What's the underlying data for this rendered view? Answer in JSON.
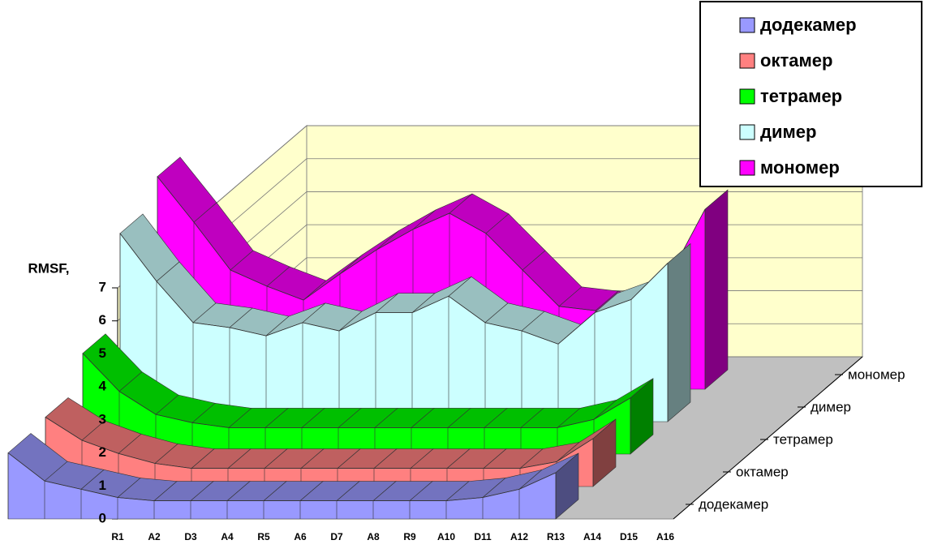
{
  "chart_data": {
    "type": "ribbon3d",
    "y_label": "RMSF,",
    "categories": [
      "R1",
      "A2",
      "D3",
      "A4",
      "R5",
      "A6",
      "D7",
      "A8",
      "R9",
      "A10",
      "D11",
      "A12",
      "R13",
      "A14",
      "D15",
      "A16"
    ],
    "series": [
      {
        "name": "додекамер",
        "color": "#9999ff",
        "values": [
          2.0,
          1.15,
          0.9,
          0.65,
          0.55,
          0.55,
          0.55,
          0.55,
          0.55,
          0.55,
          0.55,
          0.55,
          0.55,
          0.65,
          0.9,
          1.4
        ]
      },
      {
        "name": "октамер",
        "color": "#ff8080",
        "values": [
          2.1,
          1.4,
          1.0,
          0.7,
          0.55,
          0.55,
          0.55,
          0.55,
          0.55,
          0.55,
          0.55,
          0.55,
          0.55,
          0.55,
          0.75,
          1.45
        ]
      },
      {
        "name": "тетрамер",
        "color": "#00ff00",
        "values": [
          3.05,
          1.9,
          1.2,
          0.95,
          0.8,
          0.8,
          0.8,
          0.8,
          0.8,
          0.8,
          0.8,
          0.8,
          0.8,
          0.8,
          1.05,
          1.7
        ]
      },
      {
        "name": "димер",
        "color": "#ccffff",
        "values": [
          5.7,
          4.25,
          3.0,
          2.85,
          2.6,
          3.0,
          2.75,
          3.3,
          3.3,
          3.8,
          3.0,
          2.75,
          2.35,
          3.3,
          3.7,
          4.8
        ]
      },
      {
        "name": "мономер",
        "color": "#ff00ff",
        "values": [
          6.44,
          5.06,
          3.61,
          3.12,
          2.7,
          3.49,
          4.22,
          4.84,
          5.33,
          4.72,
          3.61,
          2.51,
          2.38,
          2.21,
          3.37,
          5.45
        ]
      }
    ],
    "ylim": [
      0,
      7
    ],
    "yticks": [
      0,
      1,
      2,
      3,
      4,
      5,
      6,
      7
    ],
    "grid": true,
    "legend": "top-right"
  }
}
